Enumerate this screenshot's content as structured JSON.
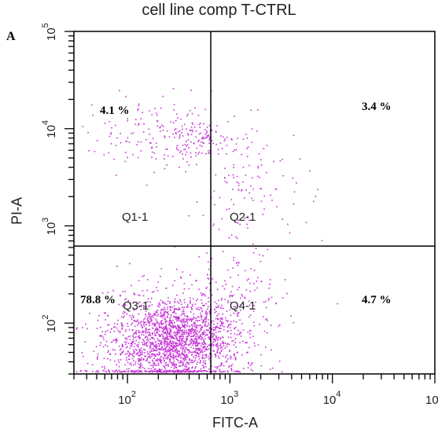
{
  "chart_data": {
    "type": "scatter",
    "title": "cell line comp T-CTRL",
    "panel_label": "A",
    "xlabel": "FITC-A",
    "ylabel": "PI-A",
    "x_scale": "log",
    "y_scale": "log",
    "xlim": [
      30,
      100000
    ],
    "ylim": [
      30,
      100000
    ],
    "x_ticks": [
      {
        "v": 100,
        "mant": "10",
        "exp": "2"
      },
      {
        "v": 1000,
        "mant": "10",
        "exp": "3"
      },
      {
        "v": 10000,
        "mant": "10",
        "exp": "4"
      },
      {
        "v": 100000,
        "mant": "10",
        "exp": "5"
      }
    ],
    "y_ticks": [
      {
        "v": 100,
        "mant": "10",
        "exp": "2"
      },
      {
        "v": 1000,
        "mant": "10",
        "exp": "3"
      },
      {
        "v": 10000,
        "mant": "10",
        "exp": "4"
      },
      {
        "v": 100000,
        "mant": "10",
        "exp": "5"
      }
    ],
    "gate_x": 650,
    "gate_y": 620,
    "point_color": "#c733d8",
    "quadrants": [
      {
        "name": "Q1-1",
        "percent": "4.1 %"
      },
      {
        "name": "Q2-1",
        "percent": "3.4 %"
      },
      {
        "name": "Q3-1",
        "percent": "78.8 %"
      },
      {
        "name": "Q4-1",
        "percent": "4.7 %"
      }
    ],
    "clusters": [
      {
        "quadrant": "Q3-1",
        "center": [
          280,
          70
        ],
        "spread": [
          0.28,
          0.22
        ],
        "count": 1600
      },
      {
        "quadrant": "Q3-1",
        "center": [
          220,
          55
        ],
        "spread": [
          0.4,
          0.3
        ],
        "count": 500
      },
      {
        "quadrant": "Q4-1",
        "center": [
          1100,
          150
        ],
        "spread": [
          0.28,
          0.35
        ],
        "count": 180
      },
      {
        "quadrant": "Q2-1",
        "center": [
          1500,
          3000
        ],
        "spread": [
          0.3,
          0.3
        ],
        "count": 130
      },
      {
        "quadrant": "Q1-1",
        "center": [
          200,
          9000
        ],
        "spread": [
          0.35,
          0.18
        ],
        "count": 160
      },
      {
        "quadrant": "Q1-1",
        "center": [
          500,
          8000
        ],
        "spread": [
          0.15,
          0.1
        ],
        "count": 80
      }
    ]
  }
}
